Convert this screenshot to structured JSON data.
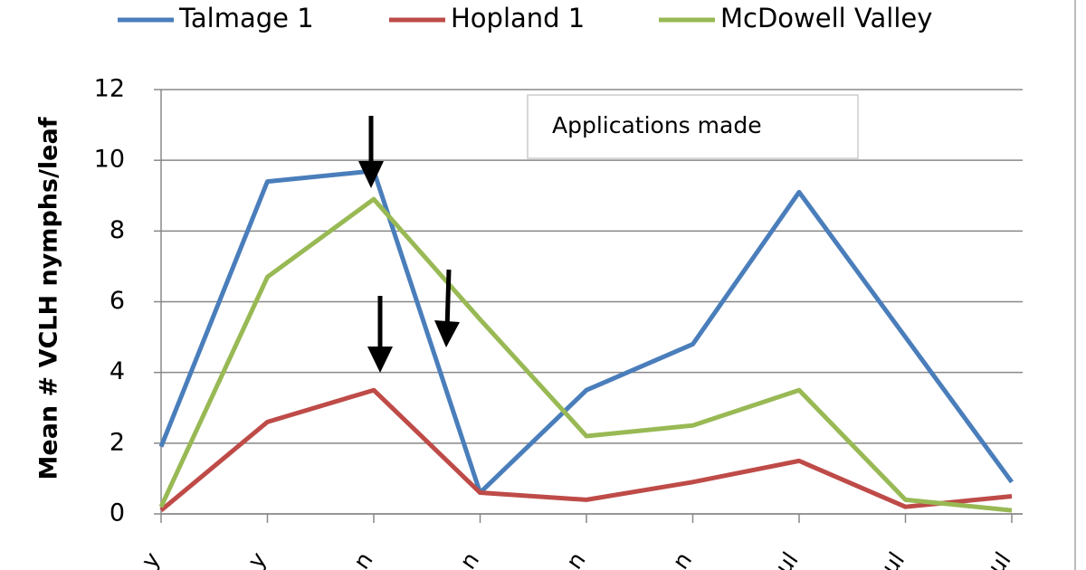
{
  "chart_data": {
    "type": "line",
    "y_label": "Mean  # VCLH nymphs/leaf",
    "annotation": "Applications made",
    "categories": [
      "y",
      "y",
      "n",
      "n",
      "n",
      "n",
      "ul",
      "ul",
      "ul"
    ],
    "series": [
      {
        "name": "Talmage 1",
        "color": "#4a7ebb",
        "values": [
          1.9,
          9.4,
          9.7,
          0.6,
          3.5,
          4.8,
          9.1,
          5.0,
          0.9
        ]
      },
      {
        "name": "Hopland 1",
        "color": "#be4b48",
        "values": [
          0.1,
          2.6,
          3.5,
          0.6,
          0.4,
          0.9,
          1.5,
          0.2,
          0.5
        ]
      },
      {
        "name": "McDowell Valley",
        "color": "#98b954",
        "values": [
          0.2,
          6.7,
          8.9,
          5.5,
          2.2,
          2.5,
          3.5,
          0.4,
          0.1
        ]
      }
    ],
    "ylim": [
      0,
      12
    ],
    "yticks": [
      0,
      2,
      4,
      6,
      8,
      10,
      12
    ],
    "grid": true
  }
}
